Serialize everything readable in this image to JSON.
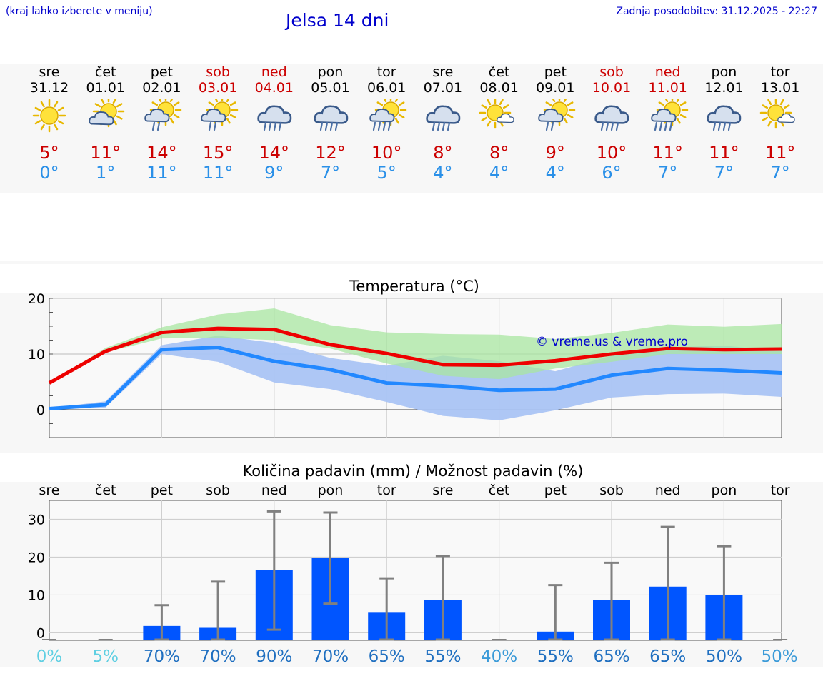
{
  "header": {
    "hint": "(kraj lahko izberete v meniju)",
    "title": "Jelsa 14 dni",
    "updated": "Zadnja posodobitev: 31.12.2025 - 22:27"
  },
  "days": [
    {
      "name": "sre",
      "date": "31.12",
      "icon": "sunny-icon",
      "tmax": "5°",
      "tmin": "0°"
    },
    {
      "name": "čet",
      "date": "01.01",
      "icon": "sun-behind-cloud-icon",
      "tmax": "11°",
      "tmin": "1°"
    },
    {
      "name": "pet",
      "date": "02.01",
      "icon": "sun-cloud-rain-icon",
      "tmax": "14°",
      "tmin": "11°"
    },
    {
      "name": "sob",
      "date": "03.01",
      "icon": "sun-cloud-rain-icon",
      "tmax": "15°",
      "tmin": "11°"
    },
    {
      "name": "ned",
      "date": "04.01",
      "icon": "rain-cloud-icon",
      "tmax": "14°",
      "tmin": "9°"
    },
    {
      "name": "pon",
      "date": "05.01",
      "icon": "rain-cloud-icon",
      "tmax": "12°",
      "tmin": "7°"
    },
    {
      "name": "tor",
      "date": "06.01",
      "icon": "sun-cloud-heavy-rain-icon",
      "tmax": "10°",
      "tmin": "5°"
    },
    {
      "name": "sre",
      "date": "07.01",
      "icon": "rain-cloud-icon",
      "tmax": "8°",
      "tmin": "4°"
    },
    {
      "name": "čet",
      "date": "08.01",
      "icon": "sun-small-cloud-icon",
      "tmax": "8°",
      "tmin": "4°"
    },
    {
      "name": "pet",
      "date": "09.01",
      "icon": "sun-cloud-rain-icon",
      "tmax": "9°",
      "tmin": "4°"
    },
    {
      "name": "sob",
      "date": "10.01",
      "icon": "rain-cloud-icon",
      "tmax": "10°",
      "tmin": "6°"
    },
    {
      "name": "ned",
      "date": "11.01",
      "icon": "sun-cloud-heavy-rain-icon",
      "tmax": "11°",
      "tmin": "7°"
    },
    {
      "name": "pon",
      "date": "12.01",
      "icon": "rain-cloud-icon",
      "tmax": "11°",
      "tmin": "7°"
    },
    {
      "name": "tor",
      "date": "13.01",
      "icon": "sun-small-cloud-icon",
      "tmax": "11°",
      "tmin": "7°"
    }
  ],
  "colors": {
    "max_line": "#ee0000",
    "min_line": "#2288ff",
    "max_band": "#a8e6a0",
    "min_band": "#aac4f4",
    "bar": "#0055ff",
    "error": "#808080",
    "watermark": "#0000cc",
    "pct_dark": "#1f6fc0",
    "pct_mid": "#3a9ad8",
    "pct_light": "#5fcfe2"
  },
  "chart_data": [
    {
      "type": "line",
      "title": "Temperatura (°C)",
      "watermark": "© vreme.us & vreme.pro",
      "ylim": [
        -5,
        20
      ],
      "y_ticks": [
        0,
        10,
        20
      ],
      "series": [
        {
          "name": "max",
          "values": [
            4.8,
            10.5,
            13.9,
            14.6,
            14.4,
            11.7,
            10.1,
            8.1,
            8.0,
            8.8,
            10.0,
            11.0,
            10.8,
            10.9
          ],
          "band_low": [
            4.8,
            10.3,
            12.8,
            12.9,
            12.5,
            11.0,
            8.3,
            6.1,
            5.5,
            7.4,
            8.6,
            10.0,
            10.0,
            10.0
          ],
          "band_high": [
            4.8,
            11.1,
            14.8,
            17.1,
            18.2,
            15.2,
            13.9,
            13.6,
            13.5,
            12.7,
            13.8,
            15.3,
            14.9,
            15.4
          ]
        },
        {
          "name": "min",
          "values": [
            0.2,
            0.9,
            10.8,
            11.2,
            8.7,
            7.2,
            4.8,
            4.3,
            3.5,
            3.7,
            6.2,
            7.4,
            7.1,
            6.6
          ],
          "band_low": [
            0.0,
            0.4,
            10.0,
            8.6,
            4.9,
            3.7,
            1.4,
            -1.1,
            -1.9,
            -0.1,
            2.2,
            2.8,
            2.9,
            2.3
          ],
          "band_high": [
            0.3,
            1.5,
            11.6,
            13.3,
            12.0,
            9.3,
            7.9,
            9.7,
            8.7,
            6.9,
            9.7,
            11.2,
            11.5,
            10.6
          ]
        }
      ]
    },
    {
      "type": "bar",
      "title": "Količina padavin (mm) / Možnost padavin (%)",
      "categories": [
        "sre",
        "čet",
        "pet",
        "sob",
        "ned",
        "pon",
        "tor",
        "sre",
        "čet",
        "pet",
        "sob",
        "ned",
        "pon",
        "tor"
      ],
      "values": [
        0,
        0,
        1.8,
        1.3,
        16.5,
        19.8,
        5.3,
        8.6,
        0,
        0.3,
        8.7,
        12.2,
        9.9,
        0
      ],
      "error_low": [
        0,
        0,
        0,
        0,
        0.8,
        7.7,
        0,
        0,
        0,
        0,
        0,
        0,
        0,
        0
      ],
      "error_high": [
        0,
        0,
        7.3,
        13.5,
        32.1,
        31.8,
        14.4,
        20.3,
        0,
        12.6,
        18.5,
        28.0,
        22.9,
        0
      ],
      "ylim": [
        -2,
        35
      ],
      "y_ticks": [
        0,
        10,
        20,
        30
      ],
      "probabilities": [
        "0%",
        "5%",
        "70%",
        "70%",
        "90%",
        "70%",
        "65%",
        "55%",
        "40%",
        "55%",
        "65%",
        "65%",
        "50%",
        "50%"
      ]
    }
  ]
}
